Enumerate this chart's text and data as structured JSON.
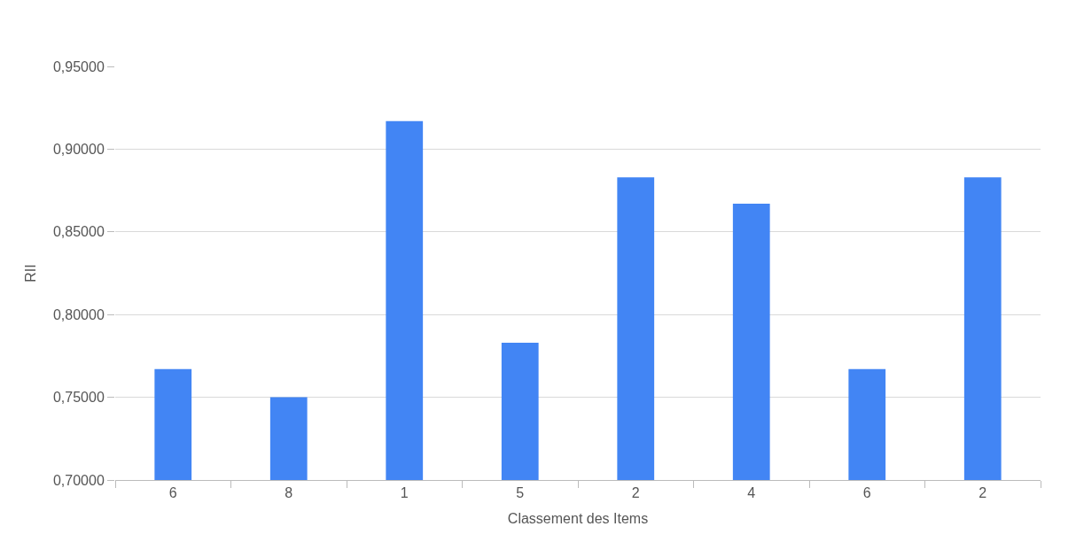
{
  "chart_data": {
    "type": "bar",
    "xlabel": "Classement des Items",
    "ylabel": "RII",
    "categories": [
      "6",
      "8",
      "1",
      "5",
      "2",
      "4",
      "6",
      "2"
    ],
    "values": [
      0.767,
      0.75,
      0.917,
      0.783,
      0.883,
      0.867,
      0.767,
      0.883
    ],
    "color": "#4285f4",
    "ylim": [
      0.7,
      0.95
    ],
    "yticks": [
      {
        "value": 0.7,
        "label": "0,70000"
      },
      {
        "value": 0.75,
        "label": "0,75000"
      },
      {
        "value": 0.8,
        "label": "0,80000"
      },
      {
        "value": 0.85,
        "label": "0,85000"
      },
      {
        "value": 0.9,
        "label": "0,90000"
      },
      {
        "value": 0.95,
        "label": "0,95000"
      }
    ],
    "grid": "y"
  }
}
